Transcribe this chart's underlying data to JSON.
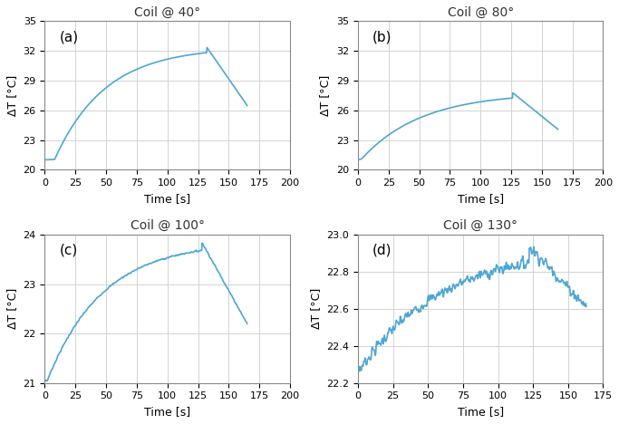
{
  "subplots": [
    {
      "title": "Coil @ 40°",
      "label": "(a)",
      "ylim": [
        20,
        35
      ],
      "yticks": [
        20,
        23,
        26,
        29,
        32,
        35
      ],
      "xlim": [
        0,
        200
      ],
      "xticks": [
        0,
        25,
        50,
        75,
        100,
        125,
        150,
        175,
        200
      ],
      "y_start": 21.0,
      "y_plateau": 21.05,
      "t_plateau_end": 8,
      "y_peak": 32.4,
      "t_rise_end": 132,
      "t_end": 165,
      "y_end": 26.5,
      "noisy": false,
      "noise_std": 0.0,
      "tau_factor": 3.0
    },
    {
      "title": "Coil @ 80°",
      "label": "(b)",
      "ylim": [
        20,
        35
      ],
      "yticks": [
        20,
        23,
        26,
        29,
        32,
        35
      ],
      "xlim": [
        0,
        200
      ],
      "xticks": [
        0,
        25,
        50,
        75,
        100,
        125,
        150,
        175,
        200
      ],
      "y_start": 21.0,
      "y_plateau": 21.1,
      "t_plateau_end": 3,
      "y_peak": 27.8,
      "t_rise_end": 126,
      "t_end": 163,
      "y_end": 24.1,
      "noisy": false,
      "noise_std": 0.0,
      "tau_factor": 2.5
    },
    {
      "title": "Coil @ 100°",
      "label": "(c)",
      "ylim": [
        21,
        24
      ],
      "yticks": [
        21,
        22,
        23,
        24
      ],
      "xlim": [
        0,
        200
      ],
      "xticks": [
        0,
        25,
        50,
        75,
        100,
        125,
        150,
        175,
        200
      ],
      "y_start": 21.05,
      "y_plateau": 21.05,
      "t_plateau_end": 2,
      "y_peak": 23.85,
      "t_rise_end": 128,
      "t_end": 165,
      "y_end": 22.2,
      "noisy": true,
      "noise_std": 0.012,
      "tau_factor": 2.8
    },
    {
      "title": "Coil @ 130°",
      "label": "(d)",
      "ylim": [
        22.2,
        23.0
      ],
      "yticks": [
        22.2,
        22.4,
        22.6,
        22.8,
        23.0
      ],
      "xlim": [
        0,
        175
      ],
      "xticks": [
        0,
        25,
        50,
        75,
        100,
        125,
        150,
        175
      ],
      "y_start": 22.28,
      "y_plateau": 22.28,
      "t_plateau_end": 2,
      "y_peak": 22.94,
      "t_rise_end": 122,
      "t_end": 163,
      "y_end": 22.61,
      "noisy": true,
      "noise_std": 0.025,
      "tau_factor": 2.0
    }
  ],
  "line_color": "#4DA6D4",
  "line_width": 1.2,
  "xlabel": "Time [s]",
  "ylabel": "ΔT [°C]",
  "bg_color": "white",
  "grid_color": "#D3D3D3",
  "label_fontsize": 11,
  "title_fontsize": 10,
  "tick_fontsize": 8,
  "axis_label_fontsize": 9
}
